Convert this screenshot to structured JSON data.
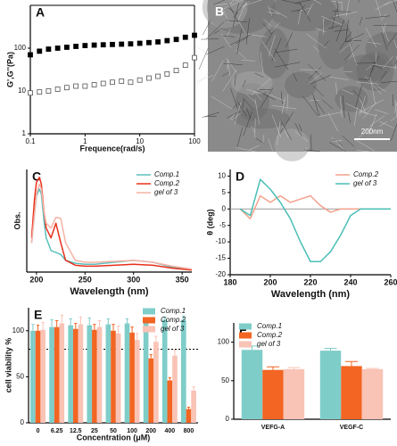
{
  "chart_data": [
    {
      "type": "scatter",
      "panel": "A",
      "log_x": true,
      "log_y": true,
      "xlabel": "Frequence(rad/s)",
      "ylabel": "G',G''(Pa)",
      "xlim": [
        0.1,
        100
      ],
      "xticks": [
        0.1,
        1,
        10,
        100
      ],
      "ylim": [
        1,
        1000
      ],
      "yticks": [
        1,
        10,
        100
      ],
      "x": [
        0.1,
        0.147,
        0.215,
        0.316,
        0.464,
        0.681,
        1,
        1.47,
        2.15,
        3.16,
        4.64,
        6.81,
        10,
        14.7,
        21.5,
        31.6,
        46.4,
        68.1,
        100
      ],
      "series": [
        {
          "marker": "filled",
          "color": "#000000",
          "values": [
            70,
            85,
            95,
            100,
            105,
            110,
            115,
            118,
            120,
            122,
            124,
            126,
            130,
            135,
            140,
            150,
            160,
            180,
            200
          ]
        },
        {
          "marker": "open",
          "color": "#555555",
          "values": [
            9,
            9.5,
            10,
            11,
            12,
            13,
            13,
            14,
            15,
            16,
            17,
            16,
            18,
            20,
            22,
            25,
            30,
            40,
            60
          ]
        }
      ]
    },
    {
      "type": "image",
      "panel": "B",
      "scale_bar": "200nm"
    },
    {
      "type": "line",
      "panel": "C",
      "xlabel": "Wavelength (nm)",
      "ylabel": "Obs.",
      "legend": "upper right",
      "xlim": [
        190,
        360
      ],
      "xticks": [
        200,
        250,
        300,
        350
      ],
      "ylim": [
        0,
        1.05
      ],
      "x": [
        195,
        198,
        200,
        203,
        205,
        208,
        210,
        215,
        220,
        225,
        230,
        240,
        250,
        260,
        280,
        300,
        320,
        340,
        360
      ],
      "series": [
        {
          "name": "Comp.1",
          "color": "#5bc0be",
          "values": [
            0.3,
            0.6,
            0.78,
            0.85,
            0.8,
            0.5,
            0.35,
            0.22,
            0.2,
            0.18,
            0.12,
            0.09,
            0.08,
            0.08,
            0.1,
            0.12,
            0.1,
            0.05,
            0.03
          ]
        },
        {
          "name": "Comp.2",
          "color": "#e8301c",
          "values": [
            0.35,
            0.75,
            0.92,
            0.97,
            0.9,
            0.6,
            0.45,
            0.35,
            0.5,
            0.3,
            0.12,
            0.07,
            0.06,
            0.06,
            0.07,
            0.08,
            0.07,
            0.04,
            0.02
          ]
        },
        {
          "name": "gel of 3",
          "color": "#f6b3a6",
          "values": [
            0.3,
            0.6,
            0.8,
            0.9,
            0.85,
            0.6,
            0.5,
            0.45,
            0.56,
            0.55,
            0.3,
            0.12,
            0.1,
            0.1,
            0.11,
            0.12,
            0.1,
            0.06,
            0.03
          ]
        }
      ]
    },
    {
      "type": "line",
      "panel": "D",
      "xlabel": "Wavelength (nm)",
      "ylabel": "θ (deg)",
      "legend": "upper right",
      "zero_line": true,
      "xlim": [
        180,
        260
      ],
      "xticks": [
        180,
        200,
        220,
        240,
        260
      ],
      "ylim": [
        -20,
        12
      ],
      "yticks": [
        -20,
        -15,
        -10,
        -5,
        0,
        5,
        10
      ],
      "x": [
        185,
        190,
        195,
        200,
        205,
        210,
        215,
        220,
        225,
        230,
        235,
        240,
        245,
        250,
        255,
        260
      ],
      "series": [
        {
          "name": "Comp.2",
          "color": "#f4a28c",
          "values": [
            0,
            -3,
            4,
            2,
            4,
            2,
            3,
            4,
            1,
            -1,
            0,
            0,
            0,
            0,
            0,
            0
          ]
        },
        {
          "name": "gel of 3",
          "color": "#4bbfb6",
          "values": [
            0,
            -2,
            9,
            6,
            2,
            -3,
            -10,
            -16,
            -16,
            -13,
            -8,
            -2,
            0,
            0,
            0,
            0
          ]
        }
      ]
    },
    {
      "type": "bar",
      "panel": "E",
      "xlabel": "Concentration (μM)",
      "ylabel": "cell viability %",
      "legend": "upper right",
      "reference_line": 80,
      "ylim": [
        0,
        125
      ],
      "yticks": [
        0,
        50,
        100
      ],
      "categories": [
        "0",
        "6.25",
        "12.5",
        "25",
        "50",
        "100",
        "200",
        "400",
        "800"
      ],
      "series": [
        {
          "name": "Comp.1",
          "color": "#7fcdc9",
          "values": [
            100,
            104,
            106,
            106,
            107,
            108,
            111,
            112,
            112
          ],
          "errors": [
            7,
            8,
            7,
            8,
            6,
            5,
            3,
            3,
            4
          ]
        },
        {
          "name": "Comp.2",
          "color": "#f26522",
          "values": [
            100,
            104,
            102,
            101,
            100,
            98,
            70,
            46,
            15
          ],
          "errors": [
            6,
            7,
            6,
            6,
            7,
            6,
            4,
            3,
            2
          ]
        },
        {
          "name": "gel of 3",
          "color": "#f9c3b5",
          "values": [
            101,
            108,
            107,
            104,
            97,
            90,
            88,
            73,
            35
          ],
          "errors": [
            8,
            9,
            8,
            7,
            8,
            7,
            6,
            6,
            4
          ]
        }
      ]
    },
    {
      "type": "bar",
      "panel": "F",
      "legend": "upper left",
      "ylim": [
        0,
        125
      ],
      "yticks": [
        0,
        50,
        100
      ],
      "categories": [
        "VEFG-A",
        "VEGF-C"
      ],
      "series": [
        {
          "name": "Comp.1",
          "color": "#7fcdc9",
          "values": [
            90,
            89
          ],
          "errors": [
            5,
            3
          ]
        },
        {
          "name": "Comp.2",
          "color": "#f26522",
          "values": [
            64,
            69
          ],
          "errors": [
            4,
            6
          ]
        },
        {
          "name": "gel of 3",
          "color": "#f9c3b5",
          "values": [
            65,
            65
          ],
          "errors": [
            2,
            1
          ]
        }
      ]
    }
  ]
}
